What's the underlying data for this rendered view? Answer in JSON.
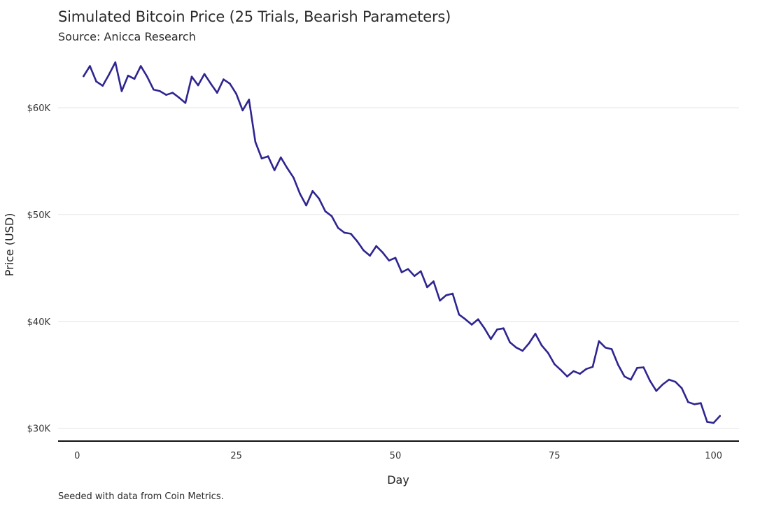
{
  "chart_data": {
    "type": "line",
    "title": "Simulated Bitcoin Price (25 Trials, Bearish Parameters)",
    "subtitle": "Source: Anicca Research",
    "caption": "Seeded with data from Coin Metrics.",
    "xlabel": "Day",
    "ylabel": "Price (USD)",
    "xlim": [
      -3,
      104
    ],
    "ylim": [
      28800,
      65500
    ],
    "x_ticks": [
      {
        "value": 0,
        "label": "0"
      },
      {
        "value": 25,
        "label": "25"
      },
      {
        "value": 50,
        "label": "50"
      },
      {
        "value": 75,
        "label": "75"
      },
      {
        "value": 100,
        "label": "100"
      }
    ],
    "y_ticks": [
      {
        "value": 30000,
        "label": "$30K"
      },
      {
        "value": 40000,
        "label": "$40K"
      },
      {
        "value": 50000,
        "label": "$50K"
      },
      {
        "value": 60000,
        "label": "$60K"
      }
    ],
    "grid": "horizontal",
    "colors": {
      "line": "#2e2590",
      "grid": "#e3e3e3",
      "axis": "#111111"
    },
    "series": [
      {
        "x": [
          1,
          2,
          3,
          4,
          5,
          6,
          7,
          8,
          9,
          10,
          11,
          12,
          13,
          14,
          15,
          16,
          17,
          18,
          19,
          20,
          21,
          22,
          23,
          24,
          25,
          26,
          27,
          28,
          29,
          30,
          31,
          32,
          33,
          34,
          35,
          36,
          37,
          38,
          39,
          40,
          41,
          42,
          43,
          44,
          45,
          46,
          47,
          48,
          49,
          50,
          51,
          52,
          53,
          54,
          55,
          56,
          57,
          58,
          59,
          60,
          61,
          62,
          63,
          64,
          65,
          66,
          67,
          68,
          69,
          70,
          71,
          72,
          73,
          74,
          75,
          76,
          77,
          78,
          79,
          80,
          81,
          82,
          83,
          84,
          85,
          86,
          87,
          88,
          89,
          90,
          91,
          92,
          93,
          94,
          95,
          96,
          97,
          98,
          99,
          100,
          101
        ],
        "values": [
          62950,
          63900,
          62450,
          62050,
          63100,
          64250,
          61550,
          63000,
          62700,
          63900,
          62900,
          61700,
          61550,
          61200,
          61400,
          60950,
          60450,
          62900,
          62100,
          63150,
          62250,
          61400,
          62650,
          62250,
          61300,
          59750,
          60750,
          56800,
          55250,
          55450,
          54150,
          55350,
          54350,
          53450,
          51950,
          50850,
          52200,
          51500,
          50300,
          49850,
          48750,
          48300,
          48200,
          47500,
          46650,
          46150,
          47050,
          46450,
          45700,
          45950,
          44600,
          44900,
          44250,
          44700,
          43200,
          43750,
          41950,
          42450,
          42600,
          40650,
          40200,
          39700,
          40200,
          39350,
          38350,
          39250,
          39350,
          38050,
          37550,
          37250,
          37950,
          38850,
          37750,
          37050,
          36000,
          35450,
          34850,
          35350,
          35100,
          35550,
          35750,
          38150,
          37550,
          37400,
          35950,
          34850,
          34550,
          35650,
          35700,
          34450,
          33500,
          34100,
          34550,
          34350,
          33750,
          32450,
          32250,
          32350,
          30600,
          30500,
          31150
        ]
      }
    ]
  }
}
